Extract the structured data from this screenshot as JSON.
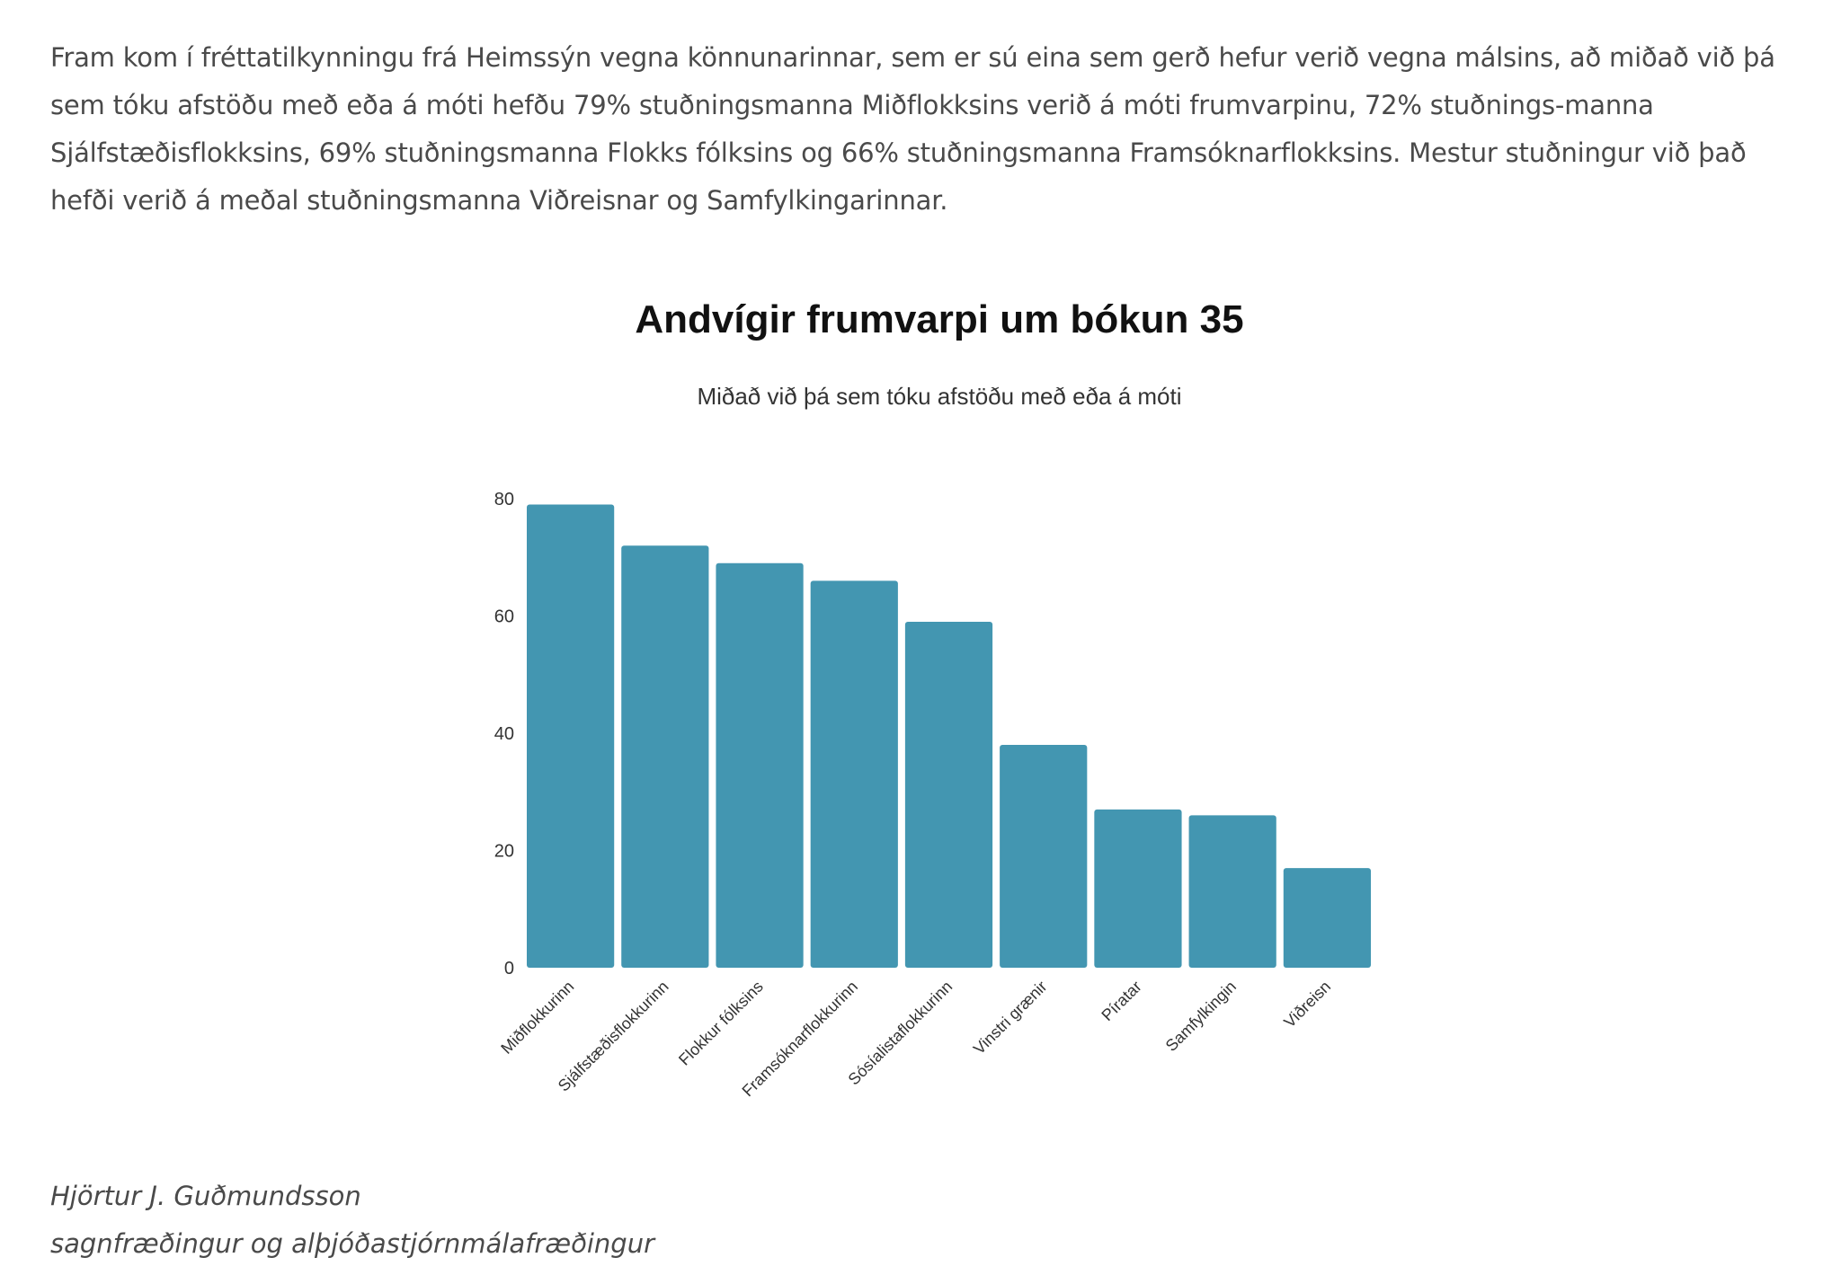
{
  "article": {
    "paragraph": "Fram kom í fréttatilkynningu frá Heimssýn vegna könnunarinnar, sem er sú eina sem gerð hefur verið vegna málsins, að miðað við þá sem tóku afstöðu með eða á móti hefðu 79% stuðningsmanna Miðflokksins verið á móti frumvarpinu, 72% stuðnings-manna Sjálfstæðisflokksins, 69% stuðningsmanna Flokks fólksins og 66% stuðningsmanna Framsóknarflokksins. Mestur stuðningur við það hefði verið á meðal stuðningsmanna Viðreisnar og Samfylkingarinnar."
  },
  "chart_data": {
    "type": "bar",
    "title": "Andvígir frumvarpi um bókun 35",
    "subtitle": "Miðað við þá sem tóku afstöðu með eða á móti",
    "categories": [
      "Miðflokkurinn",
      "Sjálfstæðisflokkurinn",
      "Flokkur fólksins",
      "Framsóknarflokkurinn",
      "Sósíalistaflokkurinn",
      "Vinstri grænir",
      "Píratar",
      "Samfylkingin",
      "Viðreisn"
    ],
    "values": [
      79,
      72,
      69,
      66,
      59,
      38,
      27,
      26,
      17
    ],
    "ylim": [
      0,
      80
    ],
    "yticks": [
      0,
      20,
      40,
      60,
      80
    ],
    "grid": false,
    "bar_color": "#4396b1",
    "xlabel": "",
    "ylabel": ""
  },
  "signature": {
    "name": "Hjörtur J. Guðmundsson",
    "role": "sagnfræðingur og alþjóðastjórnmálafræðingur"
  }
}
